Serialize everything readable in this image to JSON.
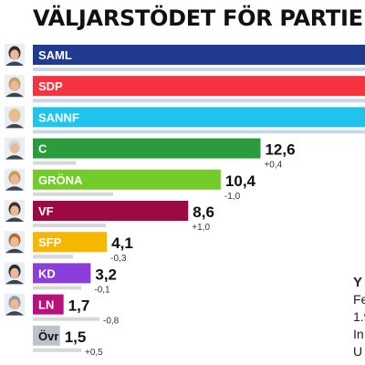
{
  "page": {
    "title": "VÄLJARSTÖDET FÖR PARTIE"
  },
  "side_text": [
    "Y",
    "Fe",
    "1.9",
    "In",
    "U"
  ],
  "colors": {
    "change_bar": "#d8d8d8",
    "text": "#111111"
  },
  "chart_data": {
    "type": "bar",
    "orientation": "horizontal",
    "title": "VÄLJARSTÖDET FÖR PARTIE",
    "categories": [
      "SAML",
      "SDP",
      "SANNF",
      "C",
      "GRÖNA",
      "VF",
      "SFP",
      "KD",
      "LN",
      "Övr"
    ],
    "values": [
      null,
      null,
      null,
      12.6,
      10.4,
      8.6,
      4.1,
      3.2,
      1.7,
      1.5
    ],
    "value_labels": [
      "",
      "",
      "",
      "12,6",
      "10,4",
      "8,6",
      "4,1",
      "3,2",
      "1,7",
      "1,5"
    ],
    "changes": [
      null,
      null,
      null,
      0.4,
      -1.0,
      1.0,
      -0.3,
      -0.1,
      -0.8,
      0.5
    ],
    "change_labels": [
      "",
      "",
      "",
      "+0,4",
      "-1,0",
      "+1,0",
      "-0,3",
      "-0,1",
      "-0,8",
      "+0,5"
    ],
    "colors": [
      "#1f3a8f",
      "#f5343f",
      "#1ec3ee",
      "#2a9c3c",
      "#74cc2a",
      "#9c0a43",
      "#f5b700",
      "#8a3fdc",
      "#b8117c",
      "#bcc3c9"
    ],
    "icons": [
      "candidate-portrait",
      "candidate-portrait",
      "candidate-portrait",
      "candidate-portrait",
      "candidate-portrait",
      "candidate-portrait",
      "candidate-portrait",
      "candidate-portrait",
      "candidate-portrait",
      "none"
    ],
    "xlim": [
      0,
      21.6
    ],
    "grid": false,
    "legend": "none"
  }
}
